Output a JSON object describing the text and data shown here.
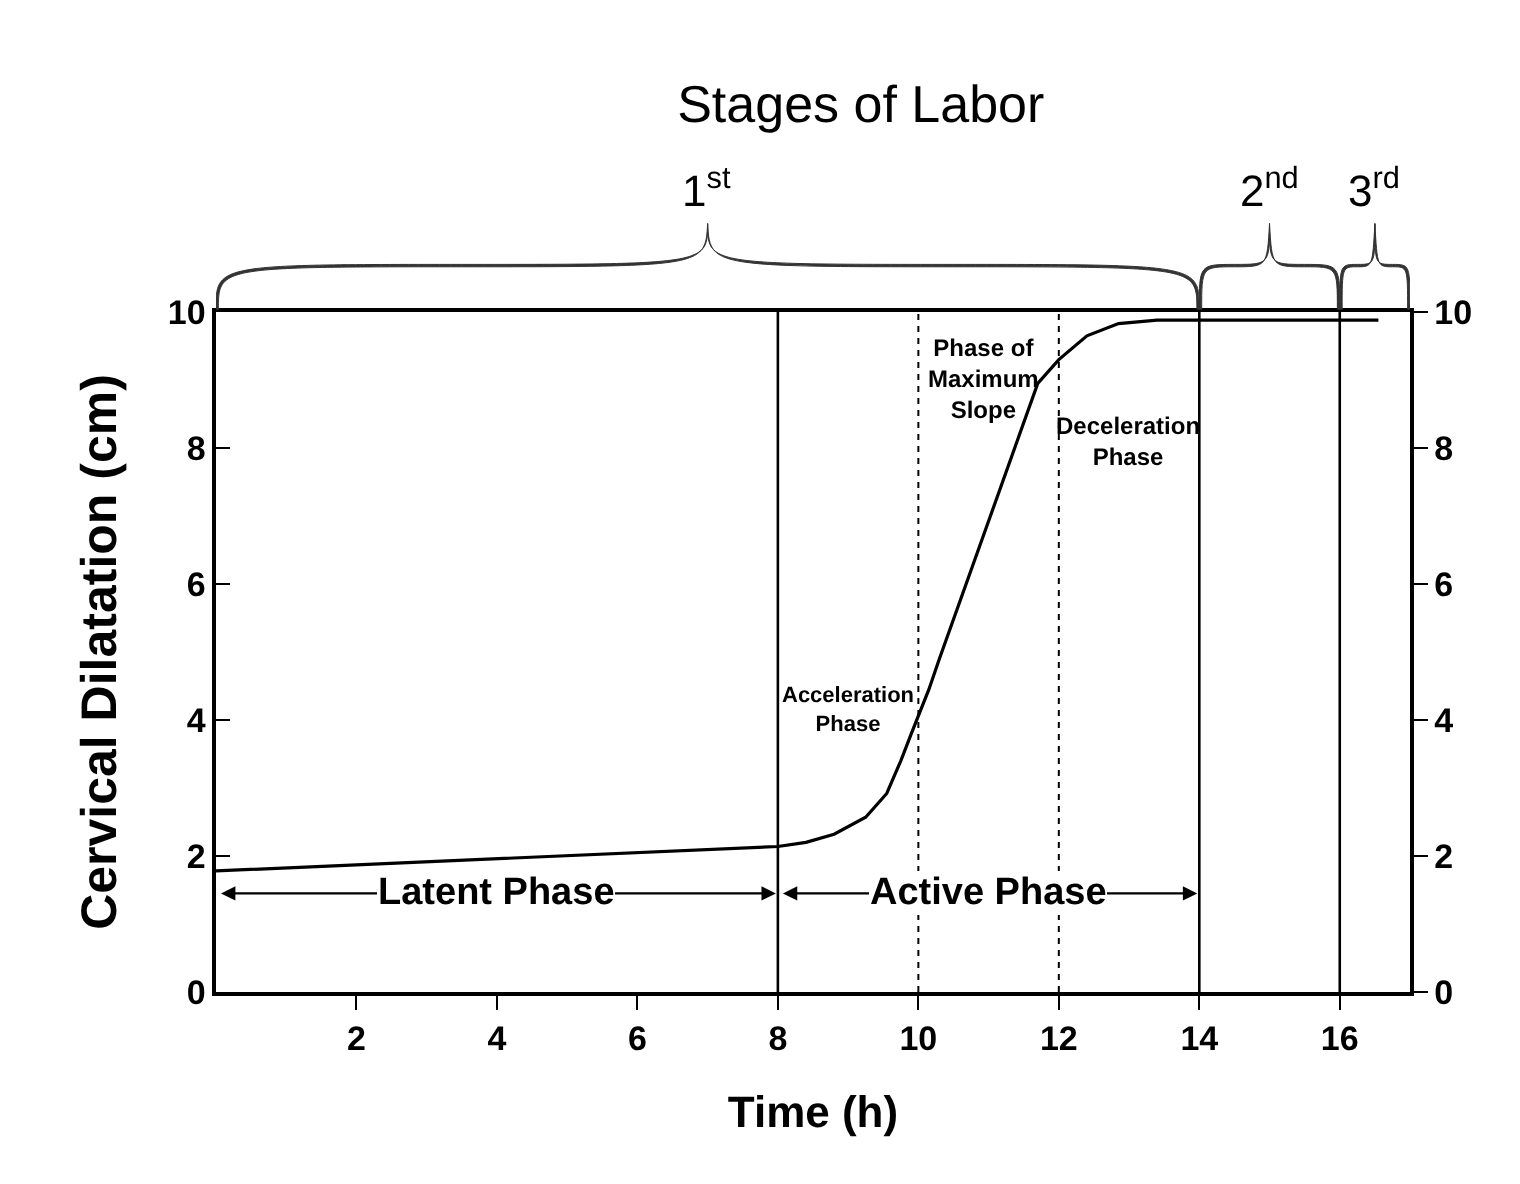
{
  "chart_data": {
    "type": "line",
    "title": "Stages of Labor",
    "xlabel": "Time (h)",
    "ylabel": "Cervical Dilatation (cm)",
    "x": [
      0,
      8,
      8.4,
      8.8,
      9.25,
      9.55,
      9.75,
      9.9,
      10.15,
      10.3,
      11.7,
      12.0,
      12.4,
      12.85,
      13.4,
      16.55
    ],
    "series": [
      {
        "color": "#000000",
        "values": [
          1.78,
          2.14,
          2.2,
          2.32,
          2.57,
          2.92,
          3.4,
          3.8,
          4.45,
          4.9,
          8.95,
          9.3,
          9.65,
          9.83,
          9.88,
          9.88
        ]
      }
    ],
    "xlim": [
      0,
      17
    ],
    "xticks": [
      2,
      4,
      6,
      8,
      10,
      12,
      14,
      16
    ],
    "ylim": [
      0,
      10
    ],
    "yticks": [
      0,
      2,
      4,
      6,
      8,
      10
    ],
    "y2lim": [
      0,
      10
    ],
    "y2ticks": [
      0,
      2,
      4,
      6,
      8,
      10
    ],
    "ref_lines": [
      {
        "axis": "x",
        "value": 8
      },
      {
        "axis": "x",
        "value": 10,
        "line_style": "dotted"
      },
      {
        "axis": "x",
        "value": 12,
        "line_style": "dotted"
      },
      {
        "axis": "x",
        "value": 14
      },
      {
        "axis": "x",
        "value": 16
      }
    ],
    "annotations": [
      "1$^{st}$",
      "2$^{nd}$",
      "3$^{rd}$",
      "Latent Phase",
      "Active Phase",
      "Acceleration\nPhase",
      "Phase of\nMaximum\nSlope",
      "Deceleration\nPhase"
    ],
    "grid": false
  }
}
